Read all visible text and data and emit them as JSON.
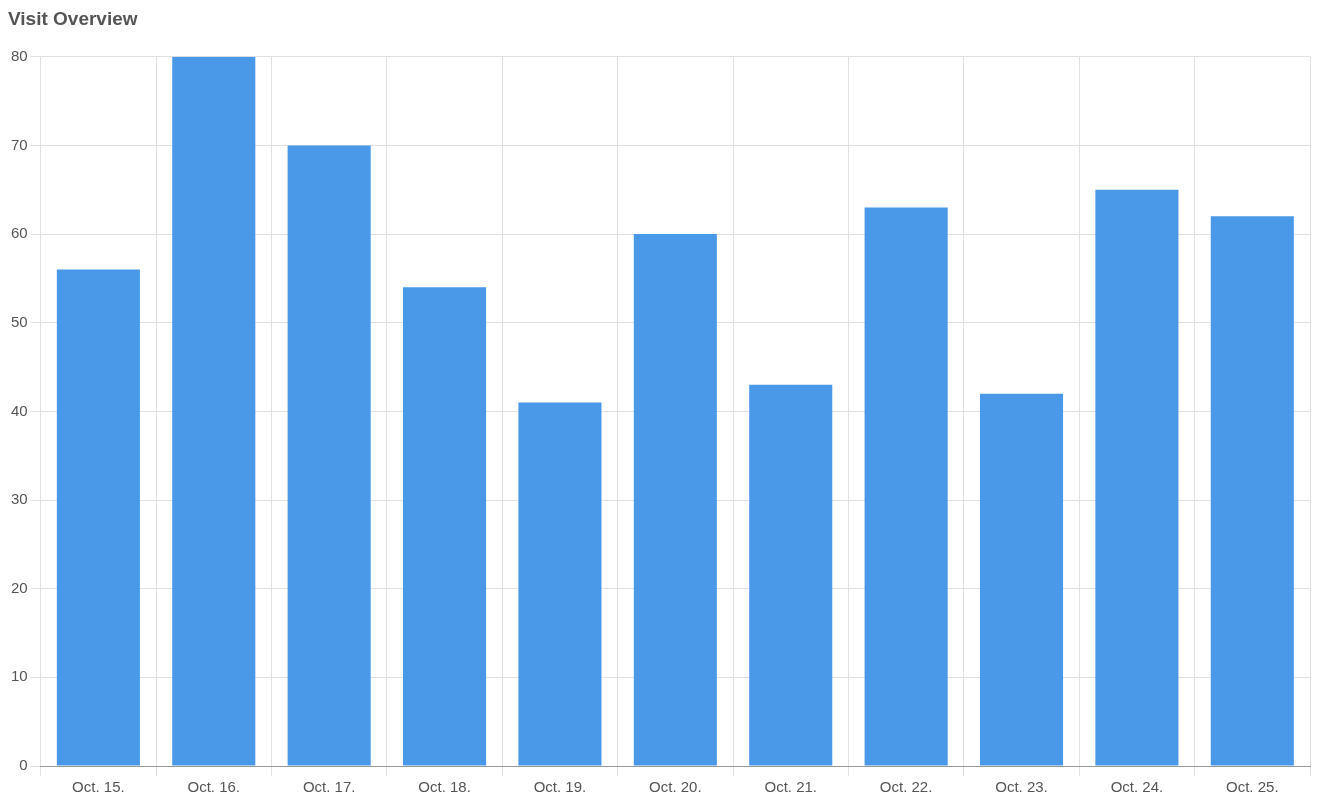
{
  "chart_data": {
    "type": "bar",
    "title": "Visit Overview",
    "categories": [
      "Oct. 15.",
      "Oct. 16.",
      "Oct. 17.",
      "Oct. 18.",
      "Oct. 19.",
      "Oct. 20.",
      "Oct. 21.",
      "Oct. 22.",
      "Oct. 23.",
      "Oct. 24.",
      "Oct. 25."
    ],
    "values": [
      56,
      80,
      70,
      54,
      41,
      60,
      43,
      63,
      42,
      65,
      62
    ],
    "color": "#4a99e8",
    "ylim": [
      0,
      80
    ],
    "yticks": [
      0,
      10,
      20,
      30,
      40,
      50,
      60,
      70,
      80
    ],
    "grid": true,
    "legend": false
  }
}
